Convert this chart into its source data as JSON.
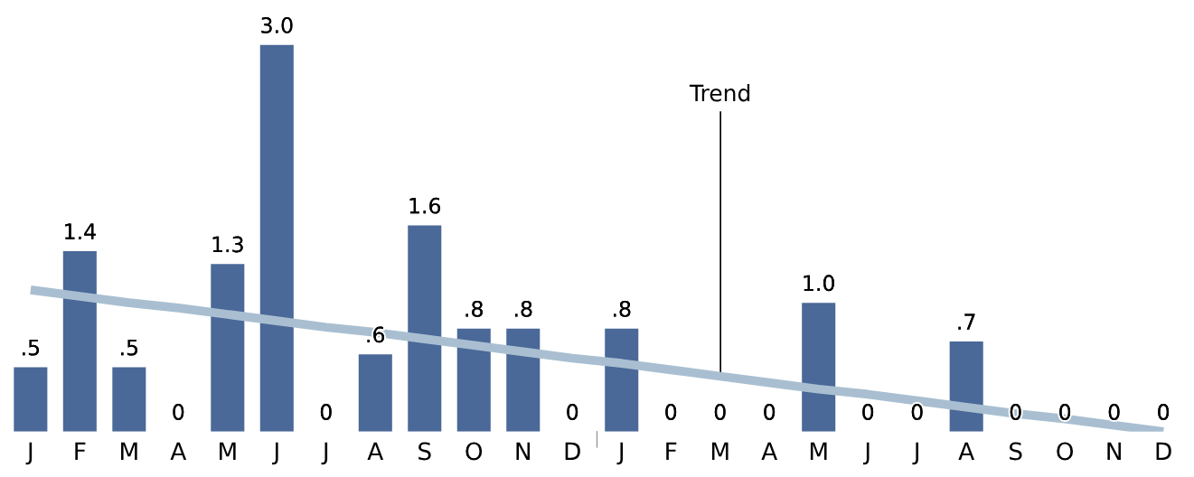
{
  "chart_data": {
    "type": "bar",
    "categories": [
      "J",
      "F",
      "M",
      "A",
      "M",
      "J",
      "J",
      "A",
      "S",
      "O",
      "N",
      "D",
      "J",
      "F",
      "M",
      "A",
      "M",
      "J",
      "J",
      "A",
      "S",
      "O",
      "N",
      "D"
    ],
    "series": [
      {
        "type": "bar",
        "color": "#4a6898",
        "values": [
          0.5,
          1.4,
          0.5,
          0,
          1.3,
          3.0,
          0,
          0.6,
          1.6,
          0.8,
          0.8,
          0,
          0.8,
          0,
          0,
          0,
          1.0,
          0,
          0,
          0.7,
          0,
          0,
          0,
          0
        ],
        "value_labels": [
          ".5",
          "1.4",
          ".5",
          "0",
          "1.3",
          "3.0",
          "0",
          ".6",
          "1.6",
          ".8",
          ".8",
          "0",
          ".8",
          "0",
          "0",
          "0",
          "1.0",
          "0",
          "0",
          ".7",
          "0",
          "0",
          "0",
          "0"
        ]
      },
      {
        "type": "line",
        "color": "#a9bfd1",
        "values": [
          1.1,
          1.05,
          1.0,
          0.96,
          0.91,
          0.86,
          0.81,
          0.77,
          0.72,
          0.67,
          0.62,
          0.57,
          0.53,
          0.48,
          0.43,
          0.38,
          0.33,
          0.29,
          0.24,
          0.19,
          0.14,
          0.1,
          0.05,
          0.0
        ]
      }
    ],
    "annotations": [
      "Trend"
    ],
    "grid": false,
    "legend": false
  }
}
